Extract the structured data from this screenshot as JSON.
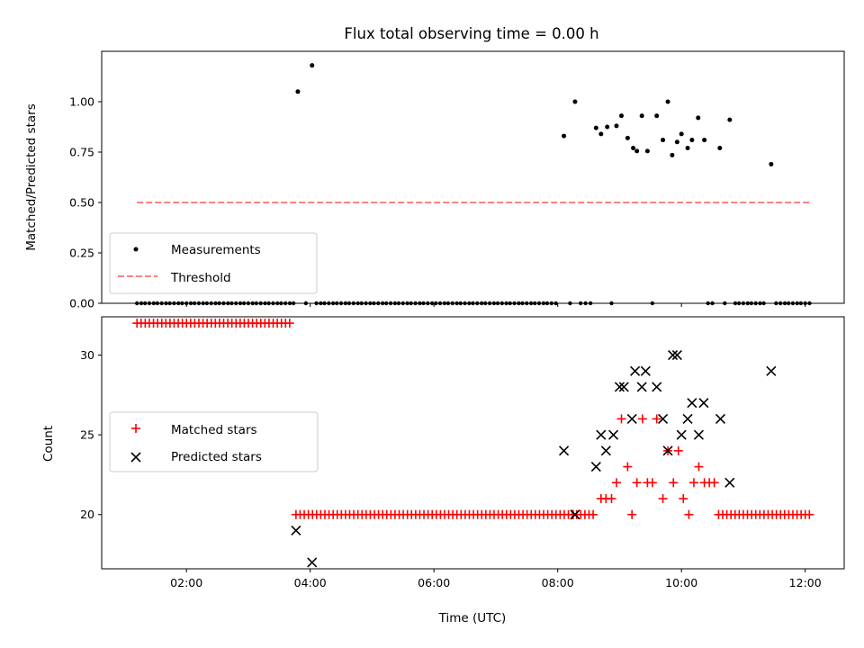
{
  "chart_data": [
    {
      "type": "scatter",
      "title": "Flux total observing time = 0.00 h",
      "xlabel": "",
      "ylabel": "Matched/Predicted stars",
      "xlim": [
        0.63,
        12.63
      ],
      "ylim": [
        0.0,
        1.25
      ],
      "yticks": [
        0.0,
        0.25,
        0.5,
        0.75,
        1.0
      ],
      "ytick_labels": [
        "0.00",
        "0.25",
        "0.50",
        "0.75",
        "1.00"
      ],
      "grid": false,
      "legend": {
        "position": "lower-left",
        "entries": [
          "Measurements",
          "Threshold"
        ]
      },
      "threshold": {
        "name": "Threshold",
        "value": 0.5,
        "x": [
          1.2,
          12.1
        ],
        "color": "#ff8080",
        "style": "dashed"
      },
      "series": [
        {
          "name": "Measurements",
          "color": "#000000",
          "marker": "dot",
          "points": [
            [
              3.8,
              1.05
            ],
            [
              4.03,
              1.18
            ],
            [
              8.1,
              0.83
            ],
            [
              8.28,
              1.0
            ],
            [
              8.62,
              0.87
            ],
            [
              8.7,
              0.84
            ],
            [
              8.8,
              0.875
            ],
            [
              8.95,
              0.88
            ],
            [
              9.03,
              0.93
            ],
            [
              9.13,
              0.82
            ],
            [
              9.22,
              0.77
            ],
            [
              9.28,
              0.755
            ],
            [
              9.36,
              0.93
            ],
            [
              9.45,
              0.755
            ],
            [
              9.6,
              0.93
            ],
            [
              9.7,
              0.81
            ],
            [
              9.78,
              1.0
            ],
            [
              9.85,
              0.735
            ],
            [
              9.93,
              0.8
            ],
            [
              10.0,
              0.84
            ],
            [
              10.1,
              0.77
            ],
            [
              10.17,
              0.81
            ],
            [
              10.27,
              0.92
            ],
            [
              10.37,
              0.81
            ],
            [
              10.62,
              0.77
            ],
            [
              10.78,
              0.91
            ],
            [
              11.45,
              0.69
            ]
          ],
          "zero_x": [
            1.2,
            1.27,
            1.33,
            1.4,
            1.47,
            1.53,
            1.6,
            1.67,
            1.73,
            1.8,
            1.87,
            1.93,
            2.0,
            2.07,
            2.13,
            2.2,
            2.27,
            2.33,
            2.4,
            2.47,
            2.53,
            2.6,
            2.67,
            2.73,
            2.8,
            2.87,
            2.93,
            3.0,
            3.07,
            3.13,
            3.2,
            3.27,
            3.33,
            3.4,
            3.47,
            3.53,
            3.6,
            3.67,
            3.73,
            3.93,
            4.1,
            4.17,
            4.23,
            4.3,
            4.37,
            4.43,
            4.5,
            4.57,
            4.63,
            4.7,
            4.77,
            4.83,
            4.9,
            4.97,
            5.03,
            5.1,
            5.17,
            5.23,
            5.3,
            5.37,
            5.43,
            5.5,
            5.57,
            5.63,
            5.7,
            5.77,
            5.83,
            5.9,
            5.97,
            6.03,
            6.1,
            6.17,
            6.23,
            6.3,
            6.37,
            6.43,
            6.5,
            6.57,
            6.63,
            6.7,
            6.77,
            6.83,
            6.9,
            6.97,
            7.03,
            7.1,
            7.17,
            7.23,
            7.3,
            7.37,
            7.43,
            7.5,
            7.57,
            7.63,
            7.7,
            7.77,
            7.83,
            7.9,
            7.97,
            8.2,
            8.37,
            8.45,
            8.53,
            8.87,
            9.53,
            10.43,
            10.5,
            10.7,
            10.87,
            10.93,
            11.0,
            11.07,
            11.13,
            11.2,
            11.27,
            11.33,
            11.53,
            11.6,
            11.67,
            11.73,
            11.8,
            11.87,
            11.93,
            12.0,
            12.07
          ]
        }
      ]
    },
    {
      "type": "scatter",
      "title": "",
      "xlabel": "Time (UTC)",
      "ylabel": "Count",
      "xlim": [
        0.63,
        12.63
      ],
      "ylim": [
        16.6,
        32.4
      ],
      "xticks": [
        2,
        4,
        6,
        8,
        10,
        12
      ],
      "xtick_labels": [
        "02:00",
        "04:00",
        "06:00",
        "08:00",
        "10:00",
        "12:00"
      ],
      "yticks": [
        20,
        25,
        30
      ],
      "ytick_labels": [
        "20",
        "25",
        "30"
      ],
      "grid": false,
      "legend": {
        "position": "center-left",
        "entries": [
          "Matched stars",
          "Predicted stars"
        ]
      },
      "series": [
        {
          "name": "Matched stars",
          "color": "#ff0000",
          "marker": "plus",
          "runs": [
            {
              "y": 32,
              "x_start": 1.2,
              "x_end": 3.73,
              "step": 0.0667
            },
            {
              "y": 20,
              "x_start": 3.77,
              "x_end": 8.63,
              "step": 0.0667
            },
            {
              "y": 20,
              "x_start": 10.6,
              "x_end": 12.1,
              "step": 0.0667
            }
          ],
          "points": [
            [
              8.25,
              20
            ],
            [
              8.7,
              21
            ],
            [
              8.78,
              21
            ],
            [
              8.87,
              21
            ],
            [
              8.95,
              22
            ],
            [
              9.03,
              26
            ],
            [
              9.13,
              23
            ],
            [
              9.2,
              20
            ],
            [
              9.28,
              22
            ],
            [
              9.37,
              26
            ],
            [
              9.45,
              22
            ],
            [
              9.53,
              22
            ],
            [
              9.6,
              26
            ],
            [
              9.7,
              21
            ],
            [
              9.78,
              24
            ],
            [
              9.87,
              22
            ],
            [
              9.95,
              24
            ],
            [
              10.03,
              21
            ],
            [
              10.12,
              20
            ],
            [
              10.2,
              22
            ],
            [
              10.28,
              23
            ],
            [
              10.37,
              22
            ],
            [
              10.45,
              22
            ],
            [
              10.53,
              22
            ]
          ]
        },
        {
          "name": "Predicted stars",
          "color": "#000000",
          "marker": "x",
          "points": [
            [
              3.77,
              19
            ],
            [
              4.03,
              17
            ],
            [
              8.1,
              24
            ],
            [
              8.28,
              20
            ],
            [
              8.62,
              23
            ],
            [
              8.7,
              25
            ],
            [
              8.78,
              24
            ],
            [
              8.9,
              25
            ],
            [
              9.0,
              28
            ],
            [
              9.07,
              28
            ],
            [
              9.2,
              26
            ],
            [
              9.25,
              29
            ],
            [
              9.36,
              28
            ],
            [
              9.42,
              29
            ],
            [
              9.6,
              28
            ],
            [
              9.7,
              26
            ],
            [
              9.78,
              24
            ],
            [
              9.86,
              30
            ],
            [
              9.93,
              30
            ],
            [
              10.0,
              25
            ],
            [
              10.1,
              26
            ],
            [
              10.17,
              27
            ],
            [
              10.28,
              25
            ],
            [
              10.36,
              27
            ],
            [
              10.63,
              26
            ],
            [
              10.78,
              22
            ],
            [
              11.45,
              29
            ]
          ]
        }
      ]
    }
  ]
}
